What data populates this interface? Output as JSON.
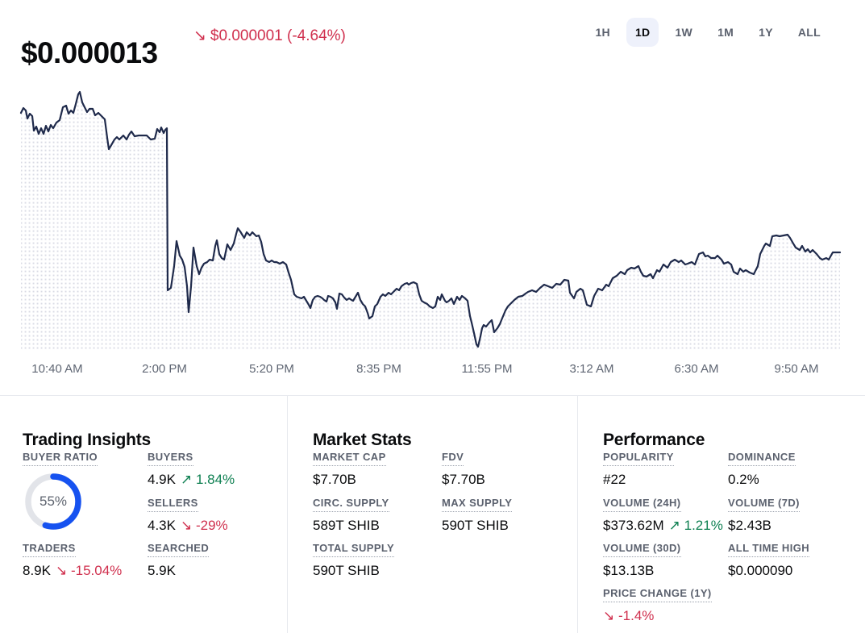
{
  "header": {
    "price": "$0.000013",
    "change_arrow": "↘",
    "change_amount": "$0.000001",
    "change_percent": "(-4.64%)",
    "timeframes": [
      "1H",
      "1D",
      "1W",
      "1M",
      "1Y",
      "ALL"
    ],
    "selected_timeframe": "1D"
  },
  "chart": {
    "type": "area-line",
    "x_ticks": [
      "10:40 AM",
      "2:00 PM",
      "5:20 PM",
      "8:35 PM",
      "11:55 PM",
      "3:12 AM",
      "6:30 AM",
      "9:50 AM"
    ],
    "line_color": "#1f2a4b",
    "dot_fill_color": "#d9dbe4",
    "baseline_y": 435,
    "points": [
      [
        26,
        140
      ],
      [
        29,
        134
      ],
      [
        32,
        137
      ],
      [
        34,
        147
      ],
      [
        37,
        141
      ],
      [
        40,
        144
      ],
      [
        42,
        162
      ],
      [
        45,
        157
      ],
      [
        48,
        166
      ],
      [
        51,
        159
      ],
      [
        54,
        166
      ],
      [
        57,
        156
      ],
      [
        60,
        163
      ],
      [
        63,
        155
      ],
      [
        66,
        159
      ],
      [
        70,
        152
      ],
      [
        74,
        149
      ],
      [
        78,
        133
      ],
      [
        82,
        131
      ],
      [
        85,
        141
      ],
      [
        88,
        137
      ],
      [
        91,
        140
      ],
      [
        94,
        129
      ],
      [
        97,
        117
      ],
      [
        99,
        114
      ],
      [
        102,
        127
      ],
      [
        105,
        133
      ],
      [
        108,
        139
      ],
      [
        111,
        135
      ],
      [
        115,
        135
      ],
      [
        118,
        143
      ],
      [
        122,
        140
      ],
      [
        126,
        144
      ],
      [
        130,
        148
      ],
      [
        133,
        171
      ],
      [
        135,
        185
      ],
      [
        138,
        180
      ],
      [
        142,
        173
      ],
      [
        145,
        170
      ],
      [
        148,
        173
      ],
      [
        153,
        168
      ],
      [
        157,
        173
      ],
      [
        160,
        167
      ],
      [
        163,
        163
      ],
      [
        167,
        169
      ],
      [
        172,
        168
      ],
      [
        177,
        168
      ],
      [
        182,
        168
      ],
      [
        187,
        173
      ],
      [
        192,
        172
      ],
      [
        195,
        160
      ],
      [
        198,
        164
      ],
      [
        200,
        158
      ],
      [
        203,
        165
      ],
      [
        205,
        161
      ],
      [
        207,
        159
      ],
      [
        208,
        360
      ],
      [
        212,
        357
      ],
      [
        216,
        330
      ],
      [
        219,
        299
      ],
      [
        223,
        317
      ],
      [
        226,
        322
      ],
      [
        229,
        331
      ],
      [
        232,
        355
      ],
      [
        234,
        387
      ],
      [
        237,
        355
      ],
      [
        240,
        307
      ],
      [
        244,
        330
      ],
      [
        247,
        340
      ],
      [
        250,
        332
      ],
      [
        253,
        327
      ],
      [
        257,
        325
      ],
      [
        260,
        322
      ],
      [
        264,
        323
      ],
      [
        267,
        305
      ],
      [
        269,
        298
      ],
      [
        272,
        315
      ],
      [
        275,
        320
      ],
      [
        278,
        322
      ],
      [
        282,
        303
      ],
      [
        286,
        310
      ],
      [
        290,
        302
      ],
      [
        293,
        290
      ],
      [
        295,
        283
      ],
      [
        298,
        287
      ],
      [
        301,
        292
      ],
      [
        303,
        295
      ],
      [
        306,
        288
      ],
      [
        310,
        292
      ],
      [
        313,
        288
      ],
      [
        316,
        291
      ],
      [
        318,
        293
      ],
      [
        321,
        292
      ],
      [
        324,
        300
      ],
      [
        327,
        315
      ],
      [
        330,
        323
      ],
      [
        334,
        325
      ],
      [
        337,
        323
      ],
      [
        340,
        325
      ],
      [
        343,
        325
      ],
      [
        347,
        327
      ],
      [
        351,
        325
      ],
      [
        355,
        328
      ],
      [
        358,
        338
      ],
      [
        361,
        347
      ],
      [
        365,
        365
      ],
      [
        368,
        368
      ],
      [
        371,
        369
      ],
      [
        374,
        370
      ],
      [
        377,
        368
      ],
      [
        380,
        373
      ],
      [
        383,
        378
      ],
      [
        385,
        382
      ],
      [
        388,
        372
      ],
      [
        391,
        368
      ],
      [
        394,
        367
      ],
      [
        397,
        368
      ],
      [
        400,
        370
      ],
      [
        402,
        372
      ],
      [
        405,
        374
      ],
      [
        407,
        367
      ],
      [
        410,
        368
      ],
      [
        413,
        370
      ],
      [
        416,
        375
      ],
      [
        418,
        383
      ],
      [
        421,
        364
      ],
      [
        424,
        365
      ],
      [
        427,
        369
      ],
      [
        430,
        372
      ],
      [
        433,
        370
      ],
      [
        436,
        372
      ],
      [
        438,
        373
      ],
      [
        441,
        368
      ],
      [
        444,
        363
      ],
      [
        447,
        372
      ],
      [
        450,
        377
      ],
      [
        453,
        380
      ],
      [
        456,
        388
      ],
      [
        458,
        395
      ],
      [
        462,
        392
      ],
      [
        465,
        380
      ],
      [
        468,
        377
      ],
      [
        472,
        368
      ],
      [
        475,
        365
      ],
      [
        478,
        367
      ],
      [
        482,
        363
      ],
      [
        485,
        365
      ],
      [
        488,
        362
      ],
      [
        492,
        358
      ],
      [
        495,
        360
      ],
      [
        498,
        355
      ],
      [
        502,
        352
      ],
      [
        505,
        351
      ],
      [
        507,
        353
      ],
      [
        510,
        351
      ],
      [
        513,
        350
      ],
      [
        517,
        352
      ],
      [
        520,
        365
      ],
      [
        523,
        373
      ],
      [
        526,
        375
      ],
      [
        530,
        377
      ],
      [
        533,
        380
      ],
      [
        537,
        382
      ],
      [
        540,
        380
      ],
      [
        543,
        368
      ],
      [
        546,
        372
      ],
      [
        548,
        365
      ],
      [
        552,
        373
      ],
      [
        554,
        375
      ],
      [
        557,
        373
      ],
      [
        560,
        370
      ],
      [
        563,
        377
      ],
      [
        567,
        368
      ],
      [
        570,
        372
      ],
      [
        573,
        367
      ],
      [
        577,
        370
      ],
      [
        580,
        373
      ],
      [
        583,
        392
      ],
      [
        585,
        400
      ],
      [
        588,
        413
      ],
      [
        591,
        427
      ],
      [
        593,
        430
      ],
      [
        596,
        417
      ],
      [
        598,
        407
      ],
      [
        600,
        403
      ],
      [
        603,
        405
      ],
      [
        607,
        400
      ],
      [
        610,
        397
      ],
      [
        613,
        412
      ],
      [
        617,
        407
      ],
      [
        620,
        402
      ],
      [
        622,
        397
      ],
      [
        627,
        385
      ],
      [
        630,
        380
      ],
      [
        632,
        378
      ],
      [
        635,
        375
      ],
      [
        638,
        372
      ],
      [
        643,
        368
      ],
      [
        648,
        367
      ],
      [
        652,
        364
      ],
      [
        655,
        362
      ],
      [
        660,
        360
      ],
      [
        665,
        362
      ],
      [
        670,
        357
      ],
      [
        675,
        353
      ],
      [
        680,
        355
      ],
      [
        685,
        357
      ],
      [
        690,
        352
      ],
      [
        695,
        353
      ],
      [
        700,
        347
      ],
      [
        705,
        348
      ],
      [
        707,
        363
      ],
      [
        712,
        370
      ],
      [
        715,
        362
      ],
      [
        720,
        358
      ],
      [
        723,
        360
      ],
      [
        728,
        378
      ],
      [
        733,
        380
      ],
      [
        737,
        367
      ],
      [
        742,
        358
      ],
      [
        747,
        360
      ],
      [
        752,
        353
      ],
      [
        755,
        355
      ],
      [
        760,
        345
      ],
      [
        765,
        342
      ],
      [
        770,
        337
      ],
      [
        775,
        340
      ],
      [
        778,
        335
      ],
      [
        783,
        332
      ],
      [
        787,
        333
      ],
      [
        792,
        330
      ],
      [
        795,
        337
      ],
      [
        798,
        342
      ],
      [
        802,
        343
      ],
      [
        807,
        340
      ],
      [
        810,
        345
      ],
      [
        815,
        335
      ],
      [
        818,
        337
      ],
      [
        823,
        328
      ],
      [
        828,
        332
      ],
      [
        832,
        325
      ],
      [
        837,
        322
      ],
      [
        842,
        325
      ],
      [
        845,
        323
      ],
      [
        850,
        328
      ],
      [
        853,
        327
      ],
      [
        858,
        325
      ],
      [
        862,
        328
      ],
      [
        867,
        315
      ],
      [
        872,
        313
      ],
      [
        875,
        318
      ],
      [
        878,
        317
      ],
      [
        882,
        320
      ],
      [
        887,
        320
      ],
      [
        890,
        317
      ],
      [
        895,
        322
      ],
      [
        898,
        327
      ],
      [
        903,
        325
      ],
      [
        907,
        328
      ],
      [
        910,
        337
      ],
      [
        915,
        340
      ],
      [
        918,
        333
      ],
      [
        922,
        337
      ],
      [
        925,
        335
      ],
      [
        930,
        338
      ],
      [
        935,
        340
      ],
      [
        940,
        330
      ],
      [
        943,
        315
      ],
      [
        948,
        305
      ],
      [
        950,
        302
      ],
      [
        955,
        305
      ],
      [
        958,
        293
      ],
      [
        963,
        292
      ],
      [
        967,
        293
      ],
      [
        972,
        292
      ],
      [
        977,
        291
      ],
      [
        980,
        295
      ],
      [
        984,
        302
      ],
      [
        987,
        307
      ],
      [
        992,
        310
      ],
      [
        995,
        305
      ],
      [
        999,
        312
      ],
      [
        1002,
        309
      ],
      [
        1005,
        313
      ],
      [
        1008,
        310
      ],
      [
        1013,
        315
      ],
      [
        1017,
        320
      ],
      [
        1020,
        322
      ],
      [
        1025,
        320
      ],
      [
        1028,
        322
      ],
      [
        1033,
        313
      ],
      [
        1038,
        313
      ],
      [
        1042,
        313
      ]
    ]
  },
  "trading_insights": {
    "title": "Trading Insights",
    "buyer_ratio": {
      "label": "BUYER RATIO",
      "percent": 55,
      "percent_label": "55%",
      "ring_color": "#1652f0",
      "track_color": "#e2e4e9"
    },
    "buyers": {
      "label": "BUYERS",
      "value": "4.9K",
      "arrow": "↗",
      "change": "1.84%",
      "trend": "up"
    },
    "sellers": {
      "label": "SELLERS",
      "value": "4.3K",
      "arrow": "↘",
      "change": "-29%",
      "trend": "down"
    },
    "traders": {
      "label": "TRADERS",
      "value": "8.9K",
      "arrow": "↘",
      "change": "-15.04%",
      "trend": "down"
    },
    "searched": {
      "label": "SEARCHED",
      "value": "5.9K"
    }
  },
  "market_stats": {
    "title": "Market Stats",
    "market_cap": {
      "label": "MARKET CAP",
      "value": "$7.70B"
    },
    "fdv": {
      "label": "FDV",
      "value": "$7.70B"
    },
    "circ_supply": {
      "label": "CIRC. SUPPLY",
      "value": "589T SHIB"
    },
    "max_supply": {
      "label": "MAX SUPPLY",
      "value": "590T SHIB"
    },
    "total_supply": {
      "label": "TOTAL SUPPLY",
      "value": "590T SHIB"
    }
  },
  "performance": {
    "title": "Performance",
    "popularity": {
      "label": "POPULARITY",
      "value": "#22"
    },
    "dominance": {
      "label": "DOMINANCE",
      "value": "0.2%"
    },
    "volume_24h": {
      "label": "VOLUME (24H)",
      "value": "$373.62M",
      "arrow": "↗",
      "change": "1.21%",
      "trend": "up"
    },
    "volume_7d": {
      "label": "VOLUME (7D)",
      "value": "$2.43B"
    },
    "volume_30d": {
      "label": "VOLUME (30D)",
      "value": "$13.13B"
    },
    "all_time_high": {
      "label": "ALL TIME HIGH",
      "value": "$0.000090"
    },
    "price_change_1y": {
      "label": "PRICE CHANGE (1Y)",
      "arrow": "↘",
      "change": "-1.4%",
      "trend": "down"
    }
  },
  "colors": {
    "accent_blue": "#1652f0",
    "positive": "#0f8052",
    "negative": "#d0304e",
    "label_gray": "#5b616e"
  }
}
